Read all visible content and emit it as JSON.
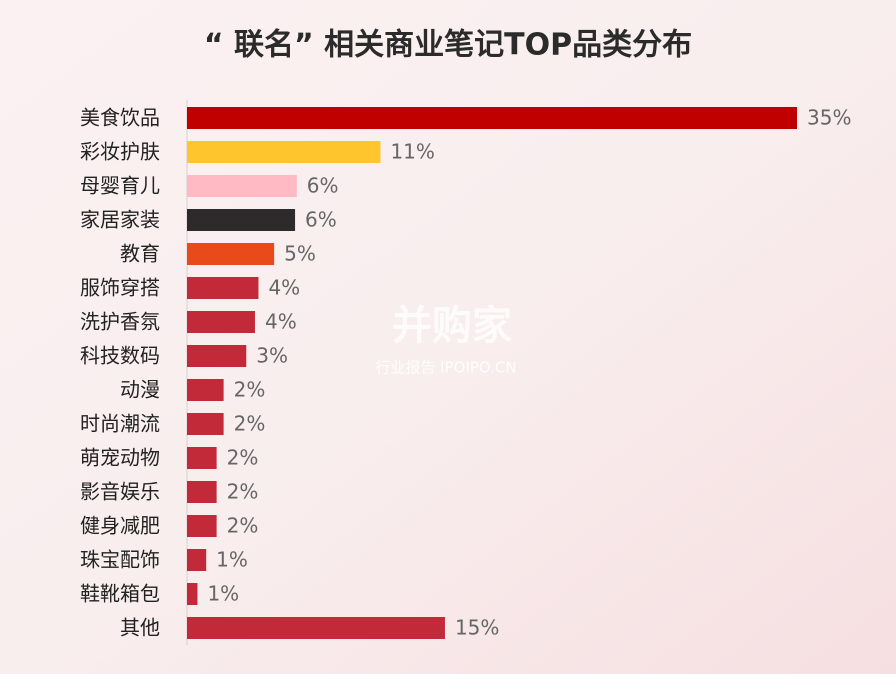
{
  "chart_data": {
    "type": "bar",
    "orientation": "horizontal",
    "title": "“ 联名” 相关商业笔记TOP品类分布",
    "categories": [
      "美食饮品",
      "彩妆护肤",
      "母婴育儿",
      "家居家装",
      "教育",
      "服饰穿搭",
      "洗护香氛",
      "科技数码",
      "动漫",
      "时尚潮流",
      "萌宠动物",
      "影音娱乐",
      "健身减肥",
      "珠宝配饰",
      "鞋靴箱包",
      "其他"
    ],
    "values": [
      35,
      11.1,
      6.3,
      6.2,
      5.0,
      4.1,
      3.9,
      3.4,
      2.1,
      2.1,
      1.7,
      1.7,
      1.7,
      1.1,
      0.6,
      14.8
    ],
    "value_labels": [
      "35%",
      "11%",
      "6%",
      "6%",
      "5%",
      "4%",
      "4%",
      "3%",
      "2%",
      "2%",
      "2%",
      "2%",
      "2%",
      "1%",
      "1%",
      "15%"
    ],
    "colors": [
      "#c00000",
      "#fec52d",
      "#ffbac3",
      "#2e2a2b",
      "#e84a19",
      "#c22a3a",
      "#c22a3a",
      "#c22a3a",
      "#c22a3a",
      "#c22a3a",
      "#c22a3a",
      "#c22a3a",
      "#c22a3a",
      "#c22a3a",
      "#c22a3a",
      "#c22a3a"
    ]
  },
  "watermark": {
    "brand": "并购家",
    "tagline": "行业报告 IPOIPO.CN"
  }
}
